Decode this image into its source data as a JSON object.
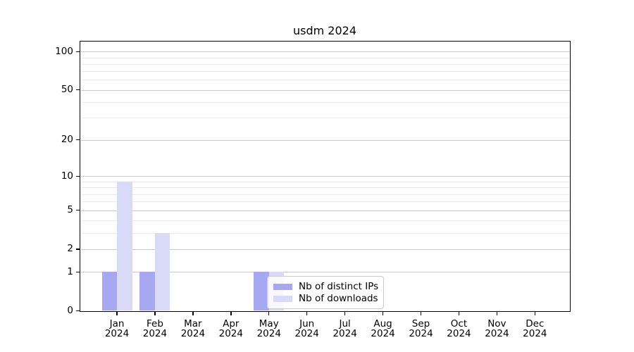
{
  "chart_data": {
    "type": "bar",
    "title": "usdm 2024",
    "xlabel": "",
    "ylabel": "",
    "x_tick_year": "2024",
    "categories": [
      "Jan",
      "Feb",
      "Mar",
      "Apr",
      "May",
      "Jun",
      "Jul",
      "Aug",
      "Sep",
      "Oct",
      "Nov",
      "Dec"
    ],
    "series": [
      {
        "name": "Nb of distinct IPs",
        "color": "#a8a8f2",
        "values": [
          1,
          1,
          0,
          0,
          1,
          0,
          0,
          0,
          0,
          0,
          0,
          0
        ]
      },
      {
        "name": "Nb of downloads",
        "color": "#d9d9f8",
        "values": [
          9,
          3,
          0,
          0,
          1,
          0,
          0,
          0,
          0,
          0,
          0,
          0
        ]
      }
    ],
    "yscale": "log1p",
    "ylim": [
      0,
      119
    ],
    "y_major_ticks": [
      0,
      1,
      2,
      5,
      10,
      20,
      50,
      100
    ],
    "y_minor_gridlines": [
      3,
      4,
      6,
      7,
      8,
      9,
      30,
      40,
      60,
      70,
      80,
      90
    ],
    "grid": "both",
    "legend_position": "inside-lower-center",
    "colors": {
      "major_grid": "#c9c9c9",
      "minor_grid": "#ebebeb",
      "spine": "#000000",
      "background": "#ffffff"
    }
  }
}
